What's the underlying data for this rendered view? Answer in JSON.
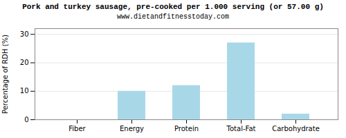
{
  "chart_data": {
    "type": "bar",
    "title": "Pork and turkey sausage, pre-cooked per 1.000 serving (or 57.00 g)",
    "subtitle": "www.dietandfitnesstoday.com",
    "categories": [
      "Fiber",
      "Energy",
      "Protein",
      "Total-Fat",
      "Carbohydrate"
    ],
    "values": [
      0,
      10,
      12,
      27,
      2
    ],
    "color": "#a8d8e8",
    "ylabel": "Percentage of RDH (%)",
    "ylim": [
      0,
      32
    ],
    "yticks": [
      0,
      10,
      20,
      30
    ],
    "grid": true
  }
}
